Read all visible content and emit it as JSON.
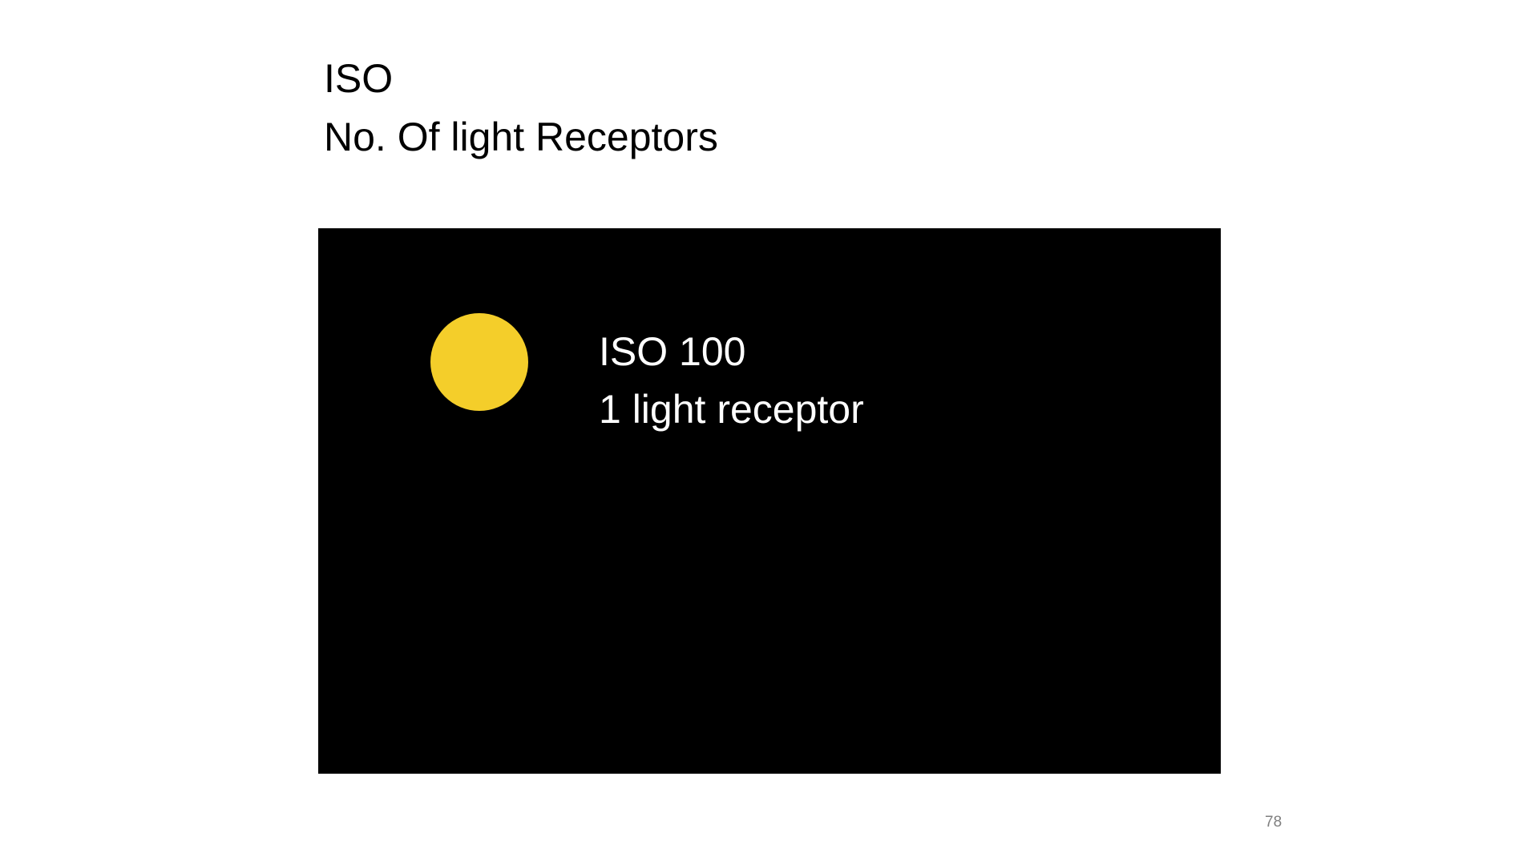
{
  "slide": {
    "title_line1": "ISO",
    "title_line2": "No. Of light Receptors",
    "image": {
      "caption_line1": "ISO 100",
      "caption_line2": "1 light receptor",
      "receptor_color": "#F4CE2A",
      "background_color": "#000000"
    },
    "page_number": "78"
  }
}
